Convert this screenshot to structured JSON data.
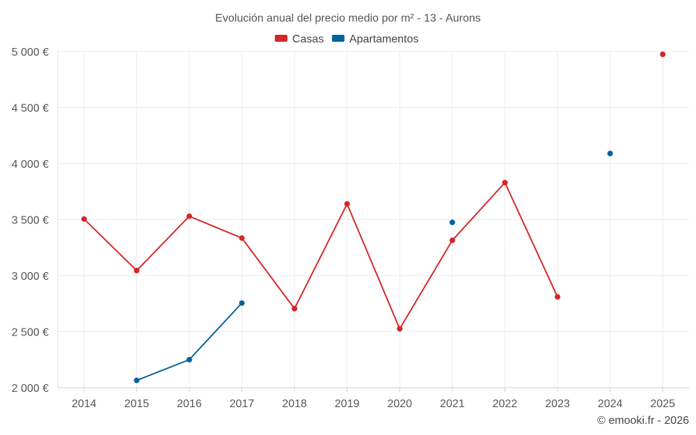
{
  "chart_data": {
    "type": "line",
    "title": "Evolución anual del precio medio por m² - 13 - Aurons",
    "xlabel": "",
    "ylabel": "",
    "categories": [
      "2014",
      "2015",
      "2016",
      "2017",
      "2018",
      "2019",
      "2020",
      "2021",
      "2022",
      "2023",
      "2024",
      "2025"
    ],
    "ylim": [
      2000,
      5000
    ],
    "yticks": [
      2000,
      2500,
      3000,
      3500,
      4000,
      4500,
      5000
    ],
    "ytick_labels": [
      "2 000 €",
      "2 500 €",
      "3 000 €",
      "3 500 €",
      "4 000 €",
      "4 500 €",
      "5 000 €"
    ],
    "grid": true,
    "legend_position": "top-center",
    "series": [
      {
        "name": "Casas",
        "color": "#d62728",
        "values": [
          3505,
          3045,
          3530,
          3335,
          2705,
          3640,
          2525,
          3315,
          3830,
          2810,
          null,
          4975
        ]
      },
      {
        "name": "Apartamentos",
        "color": "#02649b",
        "values": [
          null,
          2065,
          2250,
          2755,
          null,
          null,
          null,
          3475,
          null,
          null,
          4090,
          null
        ]
      }
    ],
    "credit": "© emooki.fr - 2026"
  }
}
